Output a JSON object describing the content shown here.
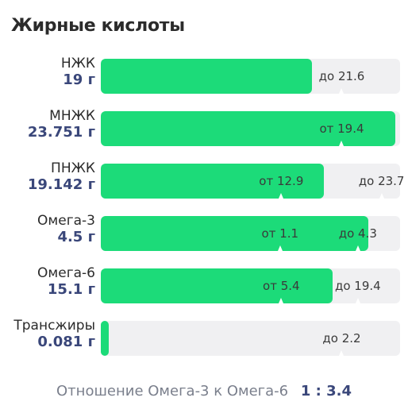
{
  "title": "Жирные кислоты",
  "rows": [
    {
      "name": "НЖК",
      "amount": "19 г",
      "fill": 0.705,
      "markers": [
        {
          "text": "до 21.6",
          "pos": 0.805
        }
      ]
    },
    {
      "name": "МНЖК",
      "amount": "23.751 г",
      "fill": 0.983,
      "markers": [
        {
          "text": "от 19.4",
          "pos": 0.805
        }
      ]
    },
    {
      "name": "ПНЖК",
      "amount": "19.142 г",
      "fill": 0.745,
      "markers": [
        {
          "text": "от 12.9",
          "pos": 0.603
        },
        {
          "text": "до 23.7",
          "pos": 0.938
        }
      ]
    },
    {
      "name": "Омега-3",
      "amount": "4.5 г",
      "fill": 0.893,
      "markers": [
        {
          "text": "от 1.1",
          "pos": 0.599
        },
        {
          "text": "до 4.3",
          "pos": 0.859
        }
      ]
    },
    {
      "name": "Омега-6",
      "amount": "15.1 г",
      "fill": 0.774,
      "markers": [
        {
          "text": "от 5.4",
          "pos": 0.603
        },
        {
          "text": "до 19.4",
          "pos": 0.859
        }
      ]
    },
    {
      "name": "Трансжиры",
      "amount": "0.081 г",
      "fill": 0.027,
      "markers": [
        {
          "text": "до 2.2",
          "pos": 0.805
        }
      ]
    }
  ],
  "ratio": {
    "label": "Отношение Омега-3 к Омега-6",
    "value": "1 : 3.4"
  },
  "colors": {
    "fill": "#1cdb79",
    "track": "#f0f0f2",
    "amount": "#3a477a"
  }
}
